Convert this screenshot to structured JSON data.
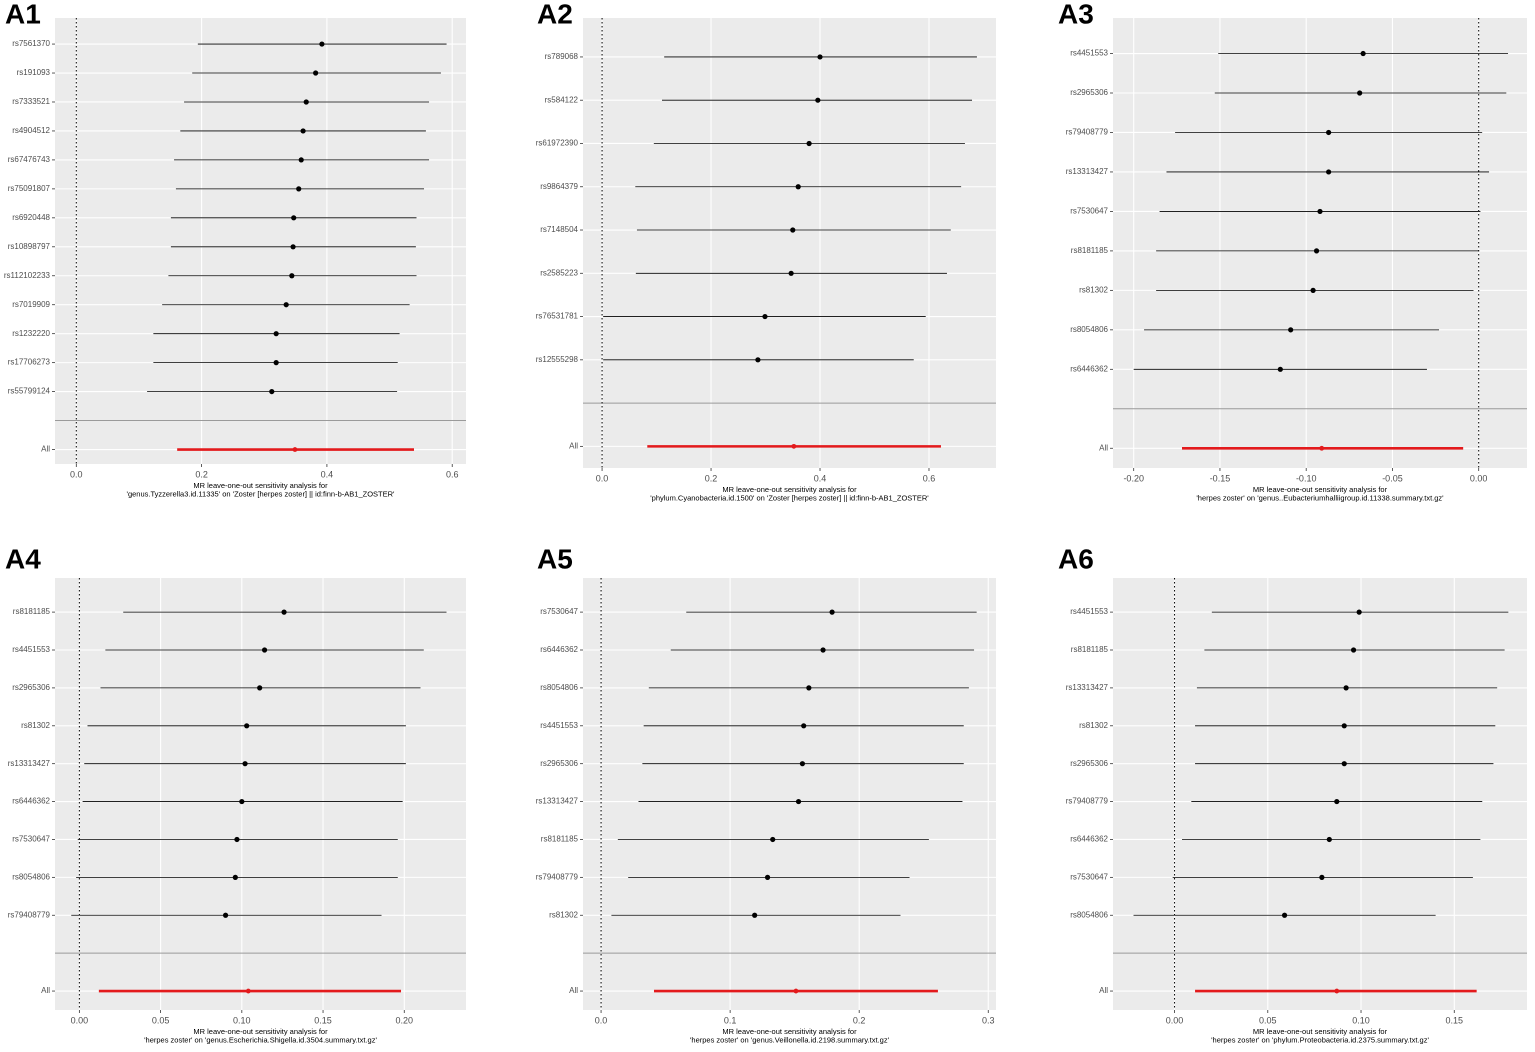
{
  "chart_data": [
    {
      "type": "forest",
      "panel": "A1",
      "xlabel": [
        "MR leave-one-out sensitivity analysis for",
        "'genus.Tyzzerella3.id.11335' on 'Zoster [herpes zoster] || id:finn-b-AB1_ZOSTER'"
      ],
      "categories": [
        "rs7561370",
        "rs191093",
        "rs7333521",
        "rs4904512",
        "rs67476743",
        "rs75091807",
        "rs6920448",
        "rs10898797",
        "rs112102233",
        "rs7019909",
        "rs1232220",
        "rs17706273",
        "rs55799124",
        "All"
      ],
      "values": [
        0.392,
        0.382,
        0.367,
        0.362,
        0.359,
        0.355,
        0.347,
        0.346,
        0.344,
        0.335,
        0.319,
        0.319,
        0.312,
        0.349
      ],
      "lower": [
        0.194,
        0.185,
        0.172,
        0.166,
        0.156,
        0.159,
        0.151,
        0.151,
        0.147,
        0.137,
        0.123,
        0.123,
        0.113,
        0.161
      ],
      "upper": [
        0.591,
        0.582,
        0.563,
        0.558,
        0.563,
        0.555,
        0.543,
        0.542,
        0.543,
        0.532,
        0.516,
        0.513,
        0.512,
        0.539
      ],
      "xlim": [
        -0.034,
        0.622
      ],
      "xticks": [
        {
          "value": 0,
          "label": "0.0"
        },
        0.2,
        0.4,
        0.6
      ],
      "vline": 0,
      "color": "#000000",
      "summary_color": "#e31a1c"
    },
    {
      "type": "forest",
      "panel": "A2",
      "xlabel": [
        "MR leave-one-out sensitivity analysis for",
        "'phylum.Cyanobacteria.id.1500' on 'Zoster [herpes zoster] || id:finn-b-AB1_ZOSTER'"
      ],
      "categories": [
        "rs789068",
        "rs584122",
        "rs61972390",
        "rs9864379",
        "rs7148504",
        "rs2585223",
        "rs76531781",
        "rs12555298",
        "All"
      ],
      "values": [
        0.4,
        0.396,
        0.38,
        0.36,
        0.35,
        0.347,
        0.299,
        0.286,
        0.352
      ],
      "lower": [
        0.114,
        0.11,
        0.095,
        0.061,
        0.064,
        0.062,
        0.002,
        0.002,
        0.083
      ],
      "upper": [
        0.688,
        0.679,
        0.666,
        0.659,
        0.64,
        0.633,
        0.594,
        0.572,
        0.622
      ],
      "xlim": [
        -0.035,
        0.723
      ],
      "xticks": [
        {
          "value": 0,
          "label": "0.0"
        },
        0.2,
        0.4,
        0.6
      ],
      "vline": 0,
      "color": "#000000",
      "summary_color": "#e31a1c"
    },
    {
      "type": "forest",
      "panel": "A3",
      "xlabel": [
        "MR leave-one-out sensitivity analysis for",
        "'herpes zoster' on 'genus..Eubacteriumhalliigroup.id.11338.summary.txt.gz'"
      ],
      "categories": [
        "rs4451553",
        "rs2965306",
        "rs79408779",
        "rs13313427",
        "rs7530647",
        "rs8181185",
        "rs81302",
        "rs8054806",
        "rs6446362",
        "All"
      ],
      "values": [
        -0.067,
        -0.069,
        -0.087,
        -0.087,
        -0.092,
        -0.094,
        -0.096,
        -0.109,
        -0.115,
        -0.091
      ],
      "lower": [
        -0.151,
        -0.153,
        -0.176,
        -0.181,
        -0.185,
        -0.187,
        -0.187,
        -0.194,
        -0.2,
        -0.172
      ],
      "upper": [
        0.017,
        0.016,
        0.002,
        0.006,
        0.001,
        0.0,
        -0.003,
        -0.023,
        -0.03,
        -0.009
      ],
      "xlim": [
        -0.212,
        0.028
      ],
      "xticks": [
        {
          "value": -0.2,
          "label": "-0.20"
        },
        -0.15,
        {
          "value": -0.1,
          "label": "-0.10"
        },
        -0.05,
        {
          "value": 0,
          "label": "0.00"
        }
      ],
      "vline": 0,
      "color": "#000000",
      "summary_color": "#e31a1c"
    },
    {
      "type": "forest",
      "panel": "A4",
      "xlabel": [
        "MR leave-one-out sensitivity analysis for",
        "'herpes zoster' on 'genus.Escherichia.Shigella.id.3504.summary.txt.gz'"
      ],
      "categories": [
        "rs8181185",
        "rs4451553",
        "rs2965306",
        "rs81302",
        "rs13313427",
        "rs6446362",
        "rs7530647",
        "rs8054806",
        "rs79408779",
        "All"
      ],
      "values": [
        0.126,
        0.114,
        0.111,
        0.103,
        0.102,
        0.1,
        0.097,
        0.096,
        0.09,
        0.104
      ],
      "lower": [
        0.027,
        0.016,
        0.013,
        0.005,
        0.003,
        0.002,
        -0.001,
        -0.002,
        -0.005,
        0.012
      ],
      "upper": [
        0.226,
        0.212,
        0.21,
        0.201,
        0.201,
        0.199,
        0.196,
        0.196,
        0.186,
        0.198
      ],
      "xlim": [
        -0.015,
        0.238
      ],
      "xticks": [
        {
          "value": 0,
          "label": "0.00"
        },
        0.05,
        {
          "value": 0.1,
          "label": "0.10"
        },
        0.15,
        {
          "value": 0.2,
          "label": "0.20"
        }
      ],
      "vline": 0,
      "color": "#000000",
      "summary_color": "#e31a1c"
    },
    {
      "type": "forest",
      "panel": "A5",
      "xlabel": [
        "MR leave-one-out sensitivity analysis for",
        "'herpes zoster' on 'genus.Veillonella.id.2198.summary.txt.gz'"
      ],
      "categories": [
        "rs7530647",
        "rs6446362",
        "rs8054806",
        "rs4451553",
        "rs2965306",
        "rs13313427",
        "rs8181185",
        "rs79408779",
        "rs81302",
        "All"
      ],
      "values": [
        0.179,
        0.172,
        0.161,
        0.157,
        0.156,
        0.153,
        0.133,
        0.129,
        0.119,
        0.151
      ],
      "lower": [
        0.066,
        0.054,
        0.037,
        0.033,
        0.032,
        0.029,
        0.013,
        0.021,
        0.008,
        0.041
      ],
      "upper": [
        0.291,
        0.289,
        0.285,
        0.281,
        0.281,
        0.28,
        0.254,
        0.239,
        0.232,
        0.261
      ],
      "xlim": [
        -0.014,
        0.306
      ],
      "xticks": [
        {
          "value": 0,
          "label": "0.0"
        },
        0.1,
        0.2,
        0.3
      ],
      "vline": 0,
      "color": "#000000",
      "summary_color": "#e31a1c"
    },
    {
      "type": "forest",
      "panel": "A6",
      "xlabel": [
        "MR leave-one-out sensitivity analysis for",
        "'herpes zoster' on 'phylum.Proteobacteria.id.2375.summary.txt.gz'"
      ],
      "categories": [
        "rs4451553",
        "rs8181185",
        "rs13313427",
        "rs81302",
        "rs2965306",
        "rs79408779",
        "rs6446362",
        "rs7530647",
        "rs8054806",
        "All"
      ],
      "values": [
        0.099,
        0.096,
        0.092,
        0.091,
        0.091,
        0.087,
        0.083,
        0.079,
        0.059,
        0.087
      ],
      "lower": [
        0.02,
        0.016,
        0.012,
        0.011,
        0.011,
        0.009,
        0.004,
        -0.001,
        -0.022,
        0.011
      ],
      "upper": [
        0.179,
        0.177,
        0.173,
        0.172,
        0.171,
        0.165,
        0.164,
        0.16,
        0.14,
        0.162
      ],
      "xlim": [
        -0.033,
        0.189
      ],
      "xticks": [
        {
          "value": 0,
          "label": "0.00"
        },
        0.05,
        {
          "value": 0.1,
          "label": "0.10"
        },
        0.15
      ],
      "vline": 0,
      "color": "#000000",
      "summary_color": "#e31a1c"
    }
  ]
}
